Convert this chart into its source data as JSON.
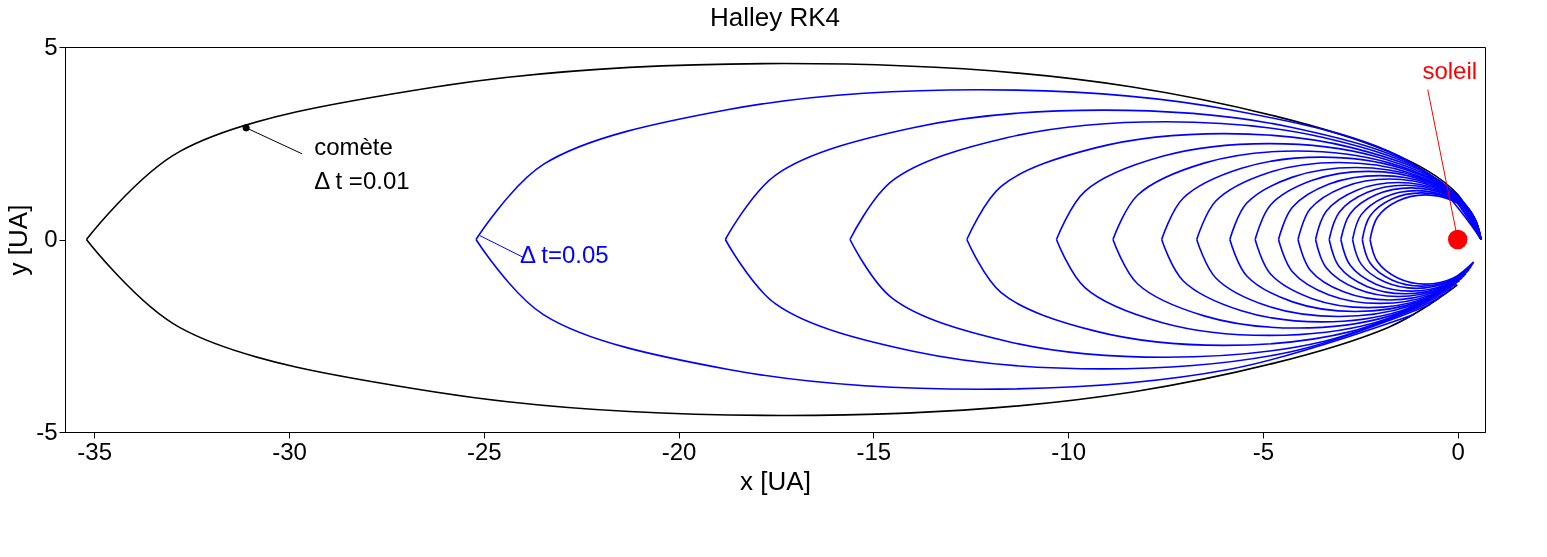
{
  "chart_data": {
    "type": "line",
    "title": "Halley RK4",
    "xlabel": "x [UA]",
    "ylabel": "y [UA]",
    "xlim": [
      -35.75,
      0.7
    ],
    "ylim": [
      -5,
      5
    ],
    "xticks": [
      -35,
      -30,
      -25,
      -20,
      -15,
      -10,
      -5,
      0
    ],
    "yticks": [
      -5,
      0,
      5
    ],
    "marker": "none",
    "line_style": "solid",
    "series": [
      {
        "color": "#000000",
        "x": [
          0.6,
          -0.01,
          -1.8,
          -8.35,
          -17.3,
          -26.25,
          -32.8,
          -35.2
        ],
        "values": [
          0,
          1.18,
          2.29,
          3.96,
          4.57,
          3.96,
          2.29,
          0
        ]
      },
      {
        "color": "#000000",
        "x": [
          -35.2,
          -32.8,
          -26.25,
          -17.3,
          -8.35,
          -1.8,
          -0.01
        ],
        "values": [
          0,
          -2.29,
          -3.96,
          -4.57,
          -3.96,
          -2.29,
          -1.18
        ]
      },
      {
        "color": "#0000ff",
        "x": [
          0.6,
          -1.13,
          -5.85,
          -12.3,
          -18.75,
          -23.47,
          -25.2
        ],
        "values": [
          0,
          1.95,
          3.37,
          3.89,
          3.37,
          1.95,
          0
        ]
      },
      {
        "color": "#0000ff",
        "x": [
          -25.2,
          -23.47,
          -18.75,
          -12.3,
          -5.85,
          -1.13
        ],
        "values": [
          0,
          -1.95,
          -3.37,
          -3.89,
          -3.37,
          -1.95
        ]
      },
      {
        "color": "#0000ff",
        "x": [
          0.6,
          -0.7,
          -4.25,
          -9.1,
          -13.95,
          -17.5,
          -18.8
        ],
        "values": [
          0,
          1.68,
          2.91,
          3.36,
          2.91,
          1.68,
          0
        ]
      },
      {
        "color": "#0000ff",
        "x": [
          -18.8,
          -17.5,
          -13.95,
          -9.1,
          -4.25,
          -0.7
        ],
        "values": [
          0,
          -1.68,
          -2.91,
          -3.36,
          -2.91,
          -1.68
        ]
      },
      {
        "color": "#0000ff",
        "x": [
          0.6,
          -0.49,
          -3.45,
          -7.5,
          -11.55,
          -14.51,
          -15.6
        ],
        "values": [
          0,
          1.53,
          2.65,
          3.06,
          2.65,
          1.53,
          0
        ]
      },
      {
        "color": "#0000ff",
        "x": [
          -15.6,
          -14.51,
          -11.55,
          -7.5,
          -3.45,
          -0.49
        ],
        "values": [
          0,
          -1.53,
          -2.65,
          -3.06,
          -2.65,
          -1.53
        ]
      },
      {
        "color": "#0000ff",
        "x": [
          0.6,
          -0.28,
          -2.7,
          -6.0,
          -9.3,
          -11.72,
          -12.6
        ],
        "values": [
          0,
          1.38,
          2.38,
          2.75,
          2.38,
          1.38,
          0
        ]
      },
      {
        "color": "#0000ff",
        "x": [
          -12.6,
          -11.72,
          -9.3,
          -6.0,
          -2.7,
          -0.28
        ],
        "values": [
          0,
          -1.38,
          -2.38,
          -2.75,
          -2.38,
          -1.38
        ]
      },
      {
        "color": "#0000ff",
        "x": [
          0.6,
          -0.13,
          -2.13,
          -4.85,
          -7.58,
          -9.57,
          -10.3
        ],
        "values": [
          0,
          1.25,
          2.16,
          2.49,
          2.16,
          1.25,
          0
        ]
      },
      {
        "color": "#0000ff",
        "x": [
          -10.3,
          -9.57,
          -7.58,
          -4.85,
          -2.13,
          -0.13
        ],
        "values": [
          0,
          -1.25,
          -2.16,
          -2.49,
          -2.16,
          -1.25
        ]
      },
      {
        "color": "#0000ff",
        "x": [
          0.6,
          -0.03,
          -1.76,
          -4.13,
          -6.49,
          -8.22,
          -8.85
        ],
        "values": [
          0,
          1.15,
          1.99,
          2.3,
          1.99,
          1.15,
          0
        ]
      },
      {
        "color": "#0000ff",
        "x": [
          -8.85,
          -8.22,
          -6.49,
          -4.13,
          -1.76,
          -0.03
        ],
        "values": [
          0,
          -1.15,
          -1.99,
          -2.3,
          -1.99,
          -1.15
        ]
      },
      {
        "color": "#0000ff",
        "x": [
          0.6,
          0.05,
          -1.45,
          -3.5,
          -5.55,
          -7.05,
          -7.6
        ],
        "values": [
          0,
          1.07,
          1.85,
          2.14,
          1.85,
          1.07,
          0
        ]
      },
      {
        "color": "#0000ff",
        "x": [
          -7.6,
          -7.05,
          -5.55,
          -3.5,
          -1.45,
          0.05
        ],
        "values": [
          0,
          -1.07,
          -1.85,
          -2.14,
          -1.85,
          -1.07
        ]
      },
      {
        "color": "#0000ff",
        "x": [
          0.6,
          0.11,
          -1.23,
          -3.05,
          -4.88,
          -6.21,
          -6.7
        ],
        "values": [
          0,
          1.0,
          1.73,
          2.0,
          1.73,
          1.0,
          0
        ]
      },
      {
        "color": "#0000ff",
        "x": [
          -6.7,
          -6.21,
          -4.88,
          -3.05,
          -1.23,
          0.11
        ],
        "values": [
          0,
          -1.0,
          -1.73,
          -2.0,
          -1.73,
          -1.0
        ]
      },
      {
        "color": "#0000ff",
        "x": [
          0.6,
          0.17,
          -1.01,
          -2.63,
          -4.24,
          -5.42,
          -5.85
        ],
        "values": [
          0,
          0.94,
          1.62,
          1.87,
          1.62,
          0.94,
          0
        ]
      },
      {
        "color": "#0000ff",
        "x": [
          -5.85,
          -5.42,
          -4.24,
          -2.63,
          -1.01,
          0.17
        ],
        "values": [
          0,
          -0.94,
          -1.62,
          -1.87,
          -1.62,
          -0.94
        ]
      },
      {
        "color": "#0000ff",
        "x": [
          0.6,
          0.21,
          -0.85,
          -2.3,
          -3.75,
          -4.81,
          -5.2
        ],
        "values": [
          0,
          0.89,
          1.53,
          1.77,
          1.53,
          0.89,
          0
        ]
      },
      {
        "color": "#0000ff",
        "x": [
          -5.2,
          -4.81,
          -3.75,
          -2.3,
          -0.85,
          0.21
        ],
        "values": [
          0,
          -0.89,
          -1.53,
          -1.77,
          -1.53,
          -0.89
        ]
      },
      {
        "color": "#0000ff",
        "x": [
          0.6,
          0.25,
          -0.7,
          -2.0,
          -3.3,
          -4.25,
          -4.6
        ],
        "values": [
          0,
          0.83,
          1.44,
          1.66,
          1.44,
          0.83,
          0
        ]
      },
      {
        "color": "#0000ff",
        "x": [
          -4.6,
          -4.25,
          -3.3,
          -2.0,
          -0.7,
          0.25
        ],
        "values": [
          0,
          -0.83,
          -1.44,
          -1.66,
          -1.44,
          -0.83
        ]
      },
      {
        "color": "#0000ff",
        "x": [
          0.6,
          0.29,
          -0.58,
          -1.75,
          -2.93,
          -3.79,
          -4.1
        ],
        "values": [
          0,
          0.79,
          1.36,
          1.57,
          1.36,
          0.79,
          0
        ]
      },
      {
        "color": "#0000ff",
        "x": [
          -4.1,
          -3.79,
          -2.93,
          -1.75,
          -0.58,
          0.29
        ],
        "values": [
          0,
          -0.79,
          -1.36,
          -1.57,
          -1.36,
          -0.79
        ]
      },
      {
        "color": "#0000ff",
        "x": [
          0.6,
          0.32,
          -0.46,
          -1.53,
          -2.59,
          -3.37,
          -3.65
        ],
        "values": [
          0,
          0.74,
          1.28,
          1.48,
          1.28,
          0.74,
          0
        ]
      },
      {
        "color": "#0000ff",
        "x": [
          -3.65,
          -3.37,
          -2.59,
          -1.53,
          -0.46,
          0.32
        ],
        "values": [
          0,
          -0.74,
          -1.28,
          -1.48,
          -1.28,
          -0.74
        ]
      },
      {
        "color": "#0000ff",
        "x": [
          0.6,
          0.34,
          -0.38,
          -1.35,
          -2.33,
          -3.04,
          -3.3
        ],
        "values": [
          0,
          0.71,
          1.22,
          1.41,
          1.22,
          0.71,
          0
        ]
      },
      {
        "color": "#0000ff",
        "x": [
          -3.3,
          -3.04,
          -2.33,
          -1.35,
          -0.38,
          0.34
        ],
        "values": [
          0,
          -0.71,
          -1.22,
          -1.41,
          -1.22,
          -0.71
        ]
      },
      {
        "color": "#0000ff",
        "x": [
          0.6,
          0.36,
          -0.3,
          -1.2,
          -2.1,
          -2.76,
          -3.0
        ],
        "values": [
          0,
          0.67,
          1.16,
          1.34,
          1.16,
          0.67,
          0
        ]
      },
      {
        "color": "#0000ff",
        "x": [
          -3.0,
          -2.76,
          -2.1,
          -1.2,
          -0.3,
          0.36
        ],
        "values": [
          0,
          -0.67,
          -1.16,
          -1.34,
          -1.16,
          -0.67
        ]
      },
      {
        "color": "#0000ff",
        "x": [
          0.6,
          0.38,
          -0.23,
          -1.05,
          -1.88,
          -2.48,
          -2.7
        ],
        "values": [
          0,
          0.64,
          1.1,
          1.27,
          1.1,
          0.64,
          0
        ]
      },
      {
        "color": "#0000ff",
        "x": [
          -2.7,
          -2.48,
          -1.88,
          -1.05,
          -0.23,
          0.38
        ],
        "values": [
          0,
          -0.64,
          -1.1,
          -1.27,
          -1.1,
          -0.64
        ]
      },
      {
        "color": "#0000ff",
        "x": [
          0.6,
          0.4,
          -0.16,
          -0.93,
          -1.69,
          -2.25,
          -2.45
        ],
        "values": [
          0,
          0.61,
          1.05,
          1.21,
          1.05,
          0.61,
          0
        ]
      },
      {
        "color": "#0000ff",
        "x": [
          -2.45,
          -2.25,
          -1.69,
          -0.93,
          -0.16,
          0.4
        ],
        "values": [
          0,
          -0.61,
          -1.05,
          -1.21,
          -1.05,
          -0.61
        ]
      },
      {
        "color": "#0000ff",
        "x": [
          0.6,
          0.41,
          -0.11,
          -0.83,
          -1.54,
          -2.06,
          -2.25
        ],
        "values": [
          0,
          0.58,
          1.0,
          1.16,
          1.0,
          0.58,
          0
        ]
      },
      {
        "color": "#0000ff",
        "x": [
          -2.25,
          -2.06,
          -1.54,
          -0.83,
          -0.11,
          0.41
        ],
        "values": [
          0,
          -0.58,
          -1.0,
          -1.16,
          -1.0,
          -0.58
        ]
      },
      {
        "type": "scatter",
        "color": "#000000",
        "marker": "circle",
        "x": [
          -31.1
        ],
        "values": [
          2.9
        ]
      },
      {
        "type": "scatter",
        "color": "#ff0000",
        "marker": "circle",
        "x": [
          0
        ],
        "values": [
          0
        ]
      }
    ],
    "annotations": [
      {
        "text": "comète\nΔ t =0.01",
        "x": -31.1,
        "y": 2.9
      },
      {
        "text": "Δ t=0.05",
        "x": -25.1,
        "y": 0.1
      },
      {
        "text": "soleil",
        "x": 0,
        "y": 0
      }
    ]
  }
}
